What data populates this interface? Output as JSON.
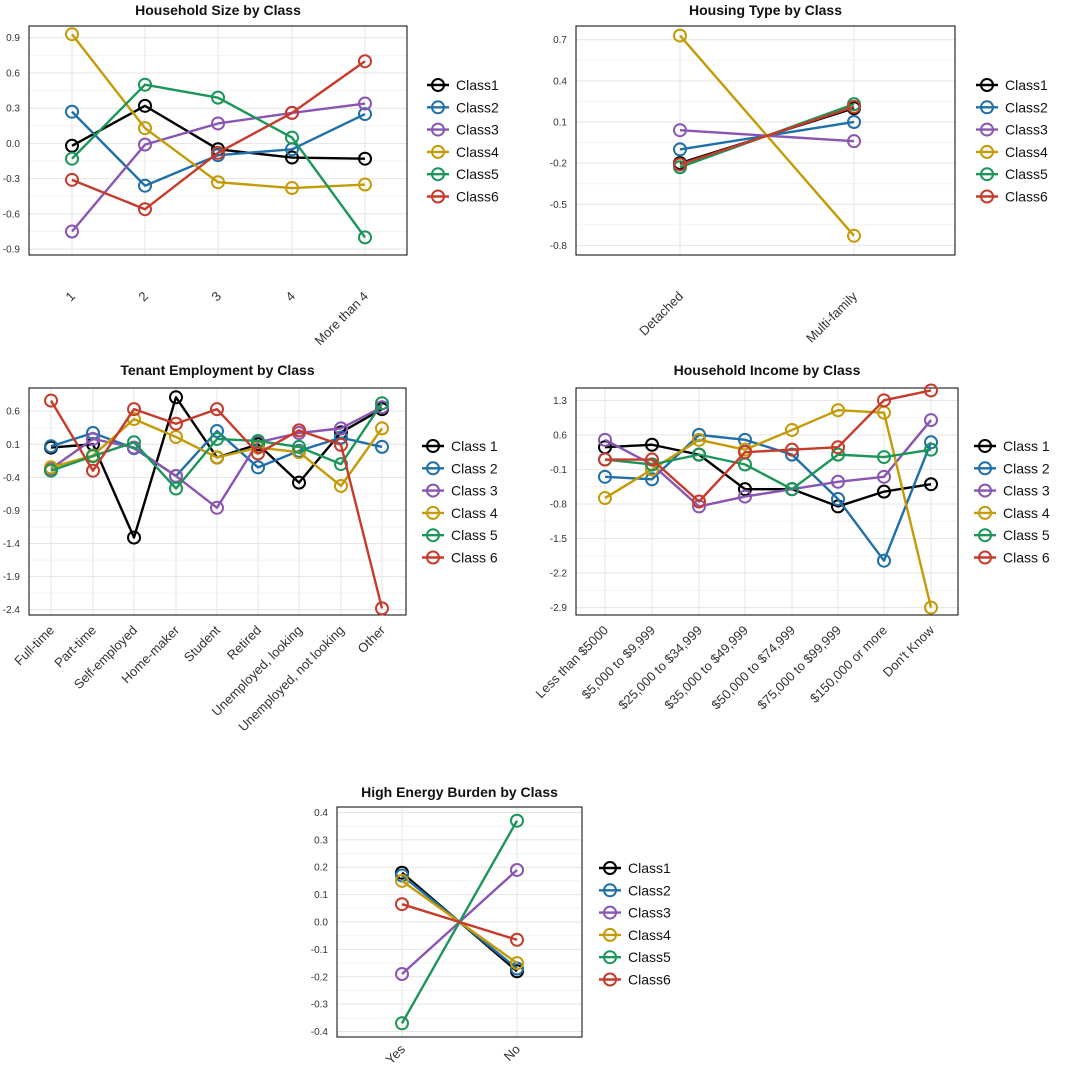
{
  "colors": {
    "Class1": "#000000",
    "Class2": "#1f6fa8",
    "Class3": "#8a55b2",
    "Class4": "#c49a06",
    "Class5": "#1b9659",
    "Class6": "#c63b2b"
  },
  "chart_data": [
    {
      "type": "line",
      "title": "Household Size by Class",
      "categories": [
        "1",
        "2",
        "3",
        "4",
        "More than 4"
      ],
      "yticks": [
        "0.9",
        "0.6",
        "0.3",
        "0.0",
        "-0.3",
        "-0.6",
        "-0.9"
      ],
      "ylim": [
        -0.95,
        1.0
      ],
      "legend_labels": [
        "Class1",
        "Class2",
        "Class3",
        "Class4",
        "Class5",
        "Class6"
      ],
      "series": [
        {
          "name": "Class1",
          "values": [
            -0.02,
            0.32,
            -0.05,
            -0.12,
            -0.13
          ]
        },
        {
          "name": "Class2",
          "values": [
            0.27,
            -0.36,
            -0.1,
            -0.05,
            0.25
          ]
        },
        {
          "name": "Class3",
          "values": [
            -0.75,
            -0.01,
            0.17,
            0.26,
            0.34
          ]
        },
        {
          "name": "Class4",
          "values": [
            0.93,
            0.13,
            -0.33,
            -0.38,
            -0.35
          ]
        },
        {
          "name": "Class5",
          "values": [
            -0.13,
            0.5,
            0.39,
            0.05,
            -0.8
          ]
        },
        {
          "name": "Class6",
          "values": [
            -0.31,
            -0.56,
            -0.08,
            0.26,
            0.7
          ]
        }
      ]
    },
    {
      "type": "line",
      "title": "Housing Type by Class",
      "categories": [
        "Detached",
        "Multi-family"
      ],
      "yticks": [
        "0.7",
        "0.4",
        "0.1",
        "-0.2",
        "-0.5",
        "-0.8"
      ],
      "ylim": [
        -0.87,
        0.8
      ],
      "legend_labels": [
        "Class1",
        "Class2",
        "Class3",
        "Class4",
        "Class5",
        "Class6"
      ],
      "series": [
        {
          "name": "Class1",
          "values": [
            -0.2,
            0.2
          ]
        },
        {
          "name": "Class2",
          "values": [
            -0.1,
            0.1
          ]
        },
        {
          "name": "Class3",
          "values": [
            0.04,
            -0.04
          ]
        },
        {
          "name": "Class4",
          "values": [
            0.73,
            -0.73
          ]
        },
        {
          "name": "Class5",
          "values": [
            -0.23,
            0.23
          ]
        },
        {
          "name": "Class6",
          "values": [
            -0.21,
            0.21
          ]
        }
      ]
    },
    {
      "type": "line",
      "title": "Tenant Employment by Class",
      "categories": [
        "Full-time",
        "Part-time",
        "Self-employed",
        "Home-maker",
        "Student",
        "Retired",
        "Unemployed, looking",
        "Unemployed, not looking",
        "Other"
      ],
      "yticks": [
        "0.6",
        "0.1",
        "-0.4",
        "-0.9",
        "-1.4",
        "-1.9",
        "-2.4"
      ],
      "ylim": [
        -2.48,
        0.95
      ],
      "legend_labels": [
        "Class 1",
        "Class 2",
        "Class 3",
        "Class 4",
        "Class 5",
        "Class 6"
      ],
      "series": [
        {
          "name": "Class1",
          "values": [
            0.05,
            0.1,
            -1.31,
            0.81,
            -0.1,
            0.1,
            -0.48,
            0.28,
            0.63
          ]
        },
        {
          "name": "Class2",
          "values": [
            0.07,
            0.27,
            0.04,
            -0.38,
            0.3,
            -0.25,
            0.0,
            0.2,
            0.06
          ]
        },
        {
          "name": "Class3",
          "values": [
            -0.27,
            0.18,
            0.05,
            -0.38,
            -0.86,
            0.13,
            0.27,
            0.34,
            0.66
          ]
        },
        {
          "name": "Class4",
          "values": [
            -0.25,
            -0.07,
            0.48,
            0.21,
            -0.1,
            0.05,
            -0.02,
            -0.53,
            0.34
          ]
        },
        {
          "name": "Class5",
          "values": [
            -0.3,
            -0.08,
            0.13,
            -0.57,
            0.18,
            0.15,
            0.06,
            -0.2,
            0.72
          ]
        },
        {
          "name": "Class6",
          "values": [
            0.76,
            -0.3,
            0.63,
            0.41,
            0.63,
            -0.04,
            0.31,
            0.09,
            -2.38
          ]
        }
      ]
    },
    {
      "type": "line",
      "title": "Household Income by Class",
      "categories": [
        "Less than $5000",
        "$5,000 to $9,999",
        "$25,000 to $34,999",
        "$35,000 to $49,999",
        "$50,000 to $74,999",
        "$75,000 to $99,999",
        "$150,000 or more",
        "Don't Know"
      ],
      "yticks": [
        "1.3",
        "0.6",
        "-0.1",
        "-0.8",
        "-1.5",
        "-2.2",
        "-2.9"
      ],
      "ylim": [
        -3.05,
        1.55
      ],
      "legend_labels": [
        "Class 1",
        "Class 2",
        "Class 3",
        "Class 4",
        "Class 5",
        "Class 6"
      ],
      "series": [
        {
          "name": "Class1",
          "values": [
            0.35,
            0.4,
            0.2,
            -0.5,
            -0.5,
            -0.85,
            -0.55,
            -0.4
          ]
        },
        {
          "name": "Class2",
          "values": [
            -0.25,
            -0.3,
            0.6,
            0.5,
            0.2,
            -0.7,
            -1.95,
            0.45
          ]
        },
        {
          "name": "Class3",
          "values": [
            0.5,
            0.0,
            -0.85,
            -0.65,
            -0.5,
            -0.35,
            -0.25,
            0.9
          ]
        },
        {
          "name": "Class4",
          "values": [
            -0.68,
            -0.1,
            0.5,
            0.3,
            0.7,
            1.1,
            1.05,
            -2.9
          ]
        },
        {
          "name": "Class5",
          "values": [
            0.1,
            0.0,
            0.2,
            0.0,
            -0.5,
            0.2,
            0.15,
            0.3
          ]
        },
        {
          "name": "Class6",
          "values": [
            0.1,
            0.1,
            -0.75,
            0.25,
            0.3,
            0.35,
            1.3,
            1.5
          ]
        }
      ]
    },
    {
      "type": "line",
      "title": "High Energy Burden by Class",
      "categories": [
        "Yes",
        "No"
      ],
      "yticks": [
        "0.4",
        "0.3",
        "0.2",
        "0.1",
        "0.0",
        "-0.1",
        "-0.2",
        "-0.3",
        "-0.4"
      ],
      "ylim": [
        -0.42,
        0.42
      ],
      "legend_labels": [
        "Class1",
        "Class2",
        "Class3",
        "Class4",
        "Class5",
        "Class6"
      ],
      "series": [
        {
          "name": "Class1",
          "values": [
            0.18,
            -0.18
          ]
        },
        {
          "name": "Class2",
          "values": [
            0.17,
            -0.17
          ]
        },
        {
          "name": "Class3",
          "values": [
            -0.19,
            0.19
          ]
        },
        {
          "name": "Class4",
          "values": [
            0.15,
            -0.15
          ]
        },
        {
          "name": "Class5",
          "values": [
            -0.37,
            0.37
          ]
        },
        {
          "name": "Class6",
          "values": [
            0.065,
            -0.065
          ]
        }
      ]
    }
  ]
}
